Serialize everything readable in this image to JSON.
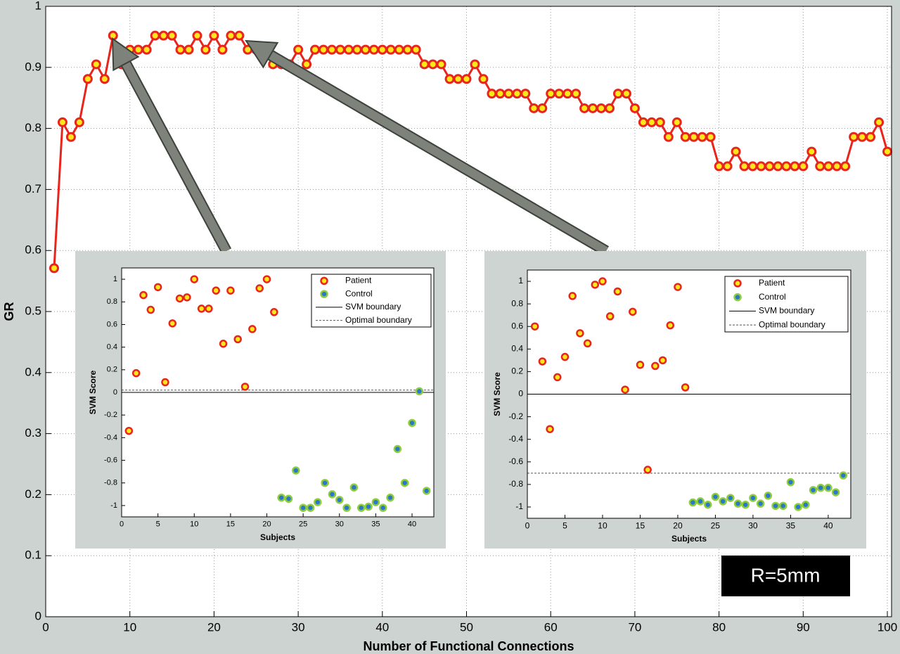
{
  "chart_data": [
    {
      "type": "line",
      "xlabel": "Number of Functional Connections",
      "ylabel": "GR",
      "x": [
        1,
        2,
        3,
        4,
        5,
        6,
        7,
        8,
        9,
        10,
        11,
        12,
        13,
        14,
        15,
        16,
        17,
        18,
        19,
        20,
        21,
        22,
        23,
        24,
        25,
        26,
        27,
        28,
        29,
        30,
        31,
        32,
        33,
        34,
        35,
        36,
        37,
        38,
        39,
        40,
        41,
        42,
        43,
        44,
        45,
        46,
        47,
        48,
        49,
        50,
        51,
        52,
        53,
        54,
        55,
        56,
        57,
        58,
        59,
        60,
        61,
        62,
        63,
        64,
        65,
        66,
        67,
        68,
        69,
        70,
        71,
        72,
        73,
        74,
        75,
        76,
        77,
        78,
        79,
        80,
        81,
        82,
        83,
        84,
        85,
        86,
        87,
        88,
        89,
        90,
        91,
        92,
        93,
        94,
        95,
        96,
        97,
        98,
        99,
        100
      ],
      "values": [
        0.571,
        0.81,
        0.786,
        0.81,
        0.881,
        0.905,
        0.881,
        0.952,
        0.905,
        0.929,
        0.929,
        0.929,
        0.952,
        0.952,
        0.952,
        0.929,
        0.929,
        0.952,
        0.929,
        0.952,
        0.929,
        0.952,
        0.952,
        0.929,
        0.929,
        0.929,
        0.905,
        0.905,
        0.905,
        0.929,
        0.905,
        0.929,
        0.929,
        0.929,
        0.929,
        0.929,
        0.929,
        0.929,
        0.929,
        0.929,
        0.929,
        0.929,
        0.929,
        0.929,
        0.905,
        0.905,
        0.905,
        0.881,
        0.881,
        0.881,
        0.905,
        0.881,
        0.857,
        0.857,
        0.857,
        0.857,
        0.857,
        0.833,
        0.833,
        0.857,
        0.857,
        0.857,
        0.857,
        0.833,
        0.833,
        0.833,
        0.833,
        0.857,
        0.857,
        0.833,
        0.81,
        0.81,
        0.81,
        0.786,
        0.81,
        0.786,
        0.786,
        0.786,
        0.786,
        0.738,
        0.738,
        0.762,
        0.738,
        0.738,
        0.738,
        0.738,
        0.738,
        0.738,
        0.738,
        0.738,
        0.762,
        0.738,
        0.738,
        0.738,
        0.738,
        0.786,
        0.786,
        0.786,
        0.81,
        0.762
      ],
      "color": "#e8251c",
      "marker_color": "#ffe81a",
      "xlim": [
        0,
        100.5
      ],
      "xticks": [
        0,
        10,
        20,
        30,
        40,
        50,
        60,
        70,
        80,
        90,
        100
      ],
      "ylim": [
        0,
        1
      ],
      "yticks": [
        0,
        0.1,
        0.2,
        0.3,
        0.4,
        0.5,
        0.6,
        0.7,
        0.8,
        0.9,
        1
      ],
      "grid": true,
      "annotation": "R=5mm"
    },
    {
      "type": "scatter",
      "xlabel": "Subjects",
      "ylabel": "SVM Score",
      "series": [
        {
          "name": "Patient",
          "color": "#ffe81a",
          "edge_color": "#e8251c",
          "x": [
            1,
            2,
            3,
            4,
            5,
            6,
            7,
            8,
            9,
            10,
            11,
            12,
            13,
            14,
            15,
            16,
            17,
            18,
            19,
            20,
            21
          ],
          "values": [
            -0.34,
            0.17,
            0.86,
            0.73,
            0.93,
            0.09,
            0.61,
            0.83,
            0.84,
            1.0,
            0.74,
            0.74,
            0.9,
            0.43,
            0.9,
            0.47,
            0.05,
            0.56,
            0.92,
            1.0,
            0.71
          ]
        },
        {
          "name": "Control",
          "color": "#2a78c8",
          "edge_color": "#8fce3a",
          "x": [
            22,
            23,
            24,
            25,
            26,
            27,
            28,
            29,
            30,
            31,
            32,
            33,
            34,
            35,
            36,
            37,
            38,
            39,
            40,
            41,
            42
          ],
          "values": [
            -0.93,
            -0.94,
            -0.69,
            -1.02,
            -1.02,
            -0.97,
            -0.8,
            -0.9,
            -0.95,
            -1.02,
            -0.84,
            -1.02,
            -1.01,
            -0.97,
            -1.02,
            -0.93,
            -0.5,
            -0.8,
            -0.27,
            0.01,
            -0.87
          ]
        }
      ],
      "reference_lines": [
        {
          "name": "SVM boundary",
          "value": 0,
          "style": "solid"
        },
        {
          "name": "Optimal boundary",
          "value": 0.02,
          "style": "dashed"
        }
      ],
      "xlim": [
        0,
        43
      ],
      "xticks": [
        0,
        5,
        10,
        15,
        20,
        25,
        30,
        35,
        40
      ],
      "ylim": [
        -1.1,
        1.1
      ],
      "yticks": [
        -1,
        -0.8,
        -0.6,
        -0.4,
        -0.2,
        0,
        0.2,
        0.4,
        0.6,
        0.8,
        1
      ],
      "grid": false,
      "legend": "upper right"
    },
    {
      "type": "scatter",
      "xlabel": "Subjects",
      "ylabel": "SVM Score",
      "series": [
        {
          "name": "Patient",
          "color": "#ffe81a",
          "edge_color": "#e8251c",
          "x": [
            1,
            2,
            3,
            4,
            5,
            6,
            7,
            8,
            9,
            10,
            11,
            12,
            13,
            14,
            15,
            16,
            17,
            18,
            19,
            20,
            21
          ],
          "values": [
            0.6,
            0.29,
            -0.31,
            0.15,
            0.33,
            0.87,
            0.54,
            0.45,
            0.97,
            1.0,
            0.69,
            0.91,
            0.04,
            0.73,
            0.26,
            -0.67,
            0.25,
            0.3,
            0.61,
            0.95,
            0.06
          ]
        },
        {
          "name": "Control",
          "color": "#2a78c8",
          "edge_color": "#8fce3a",
          "x": [
            22,
            23,
            24,
            25,
            26,
            27,
            28,
            29,
            30,
            31,
            32,
            33,
            34,
            35,
            36,
            37,
            38,
            39,
            40,
            41,
            42
          ],
          "values": [
            -0.96,
            -0.95,
            -0.98,
            -0.91,
            -0.95,
            -0.92,
            -0.97,
            -0.98,
            -0.92,
            -0.97,
            -0.9,
            -0.99,
            -0.99,
            -0.78,
            -1.0,
            -0.98,
            -0.85,
            -0.83,
            -0.83,
            -0.87,
            -0.72
          ]
        }
      ],
      "reference_lines": [
        {
          "name": "SVM boundary",
          "value": 0,
          "style": "solid"
        },
        {
          "name": "Optimal boundary",
          "value": -0.7,
          "style": "dashed"
        }
      ],
      "xlim": [
        0,
        43
      ],
      "xticks": [
        0,
        5,
        10,
        15,
        20,
        25,
        30,
        35,
        40
      ],
      "ylim": [
        -1.1,
        1.1
      ],
      "yticks": [
        -1,
        -0.8,
        -0.6,
        -0.4,
        -0.2,
        0,
        0.2,
        0.4,
        0.6,
        0.8,
        1
      ],
      "grid": false,
      "legend": "upper right"
    }
  ]
}
